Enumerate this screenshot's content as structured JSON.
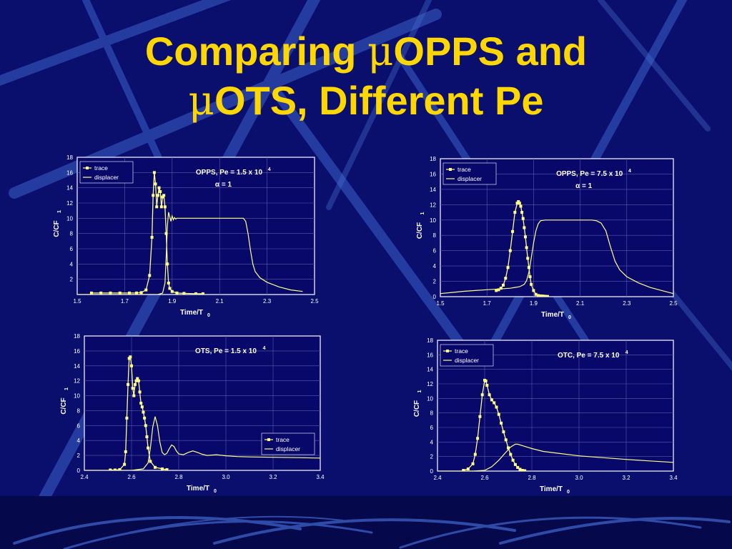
{
  "slide": {
    "title_line1_pre": "Comparing ",
    "title_line1_mu": "μ",
    "title_line1_post": "OPPS and",
    "title_line2_mu": "μ",
    "title_line2_post": "OTS, Different Pe",
    "colors": {
      "background": "#0a0f6e",
      "accent": "#ffd700",
      "plot": "#08086a",
      "line": "#ffff88"
    }
  },
  "chart_data": [
    {
      "type": "line",
      "title": "OPPS, Pe = 1.5 x 10",
      "title_sup": "4",
      "subtitle": "α  = 1",
      "xlabel": "Time/T",
      "xlabel_sub": "0",
      "ylabel": "C/CF",
      "ylabel_sub": "1",
      "xlim": [
        1.5,
        2.5
      ],
      "ylim": [
        0,
        18
      ],
      "xticks": [
        "1.5",
        "1.7",
        "1.9",
        "2.1",
        "2.3",
        "2.5"
      ],
      "yticks": [
        "2",
        "4",
        "6",
        "8",
        "10",
        "12",
        "14",
        "16",
        "18"
      ],
      "legend": "top-left",
      "series": [
        {
          "name": "trace",
          "marker": "square",
          "x": [
            1.56,
            1.6,
            1.64,
            1.68,
            1.72,
            1.75,
            1.77,
            1.79,
            1.805,
            1.815,
            1.82,
            1.825,
            1.83,
            1.835,
            1.84,
            1.845,
            1.85,
            1.855,
            1.86,
            1.865,
            1.87,
            1.875,
            1.88,
            1.885,
            1.89,
            1.9,
            1.92,
            1.95,
            2.0,
            2.03
          ],
          "y": [
            0.2,
            0.2,
            0.2,
            0.2,
            0.2,
            0.2,
            0.25,
            0.6,
            2.5,
            7.5,
            13,
            16,
            14.5,
            11.5,
            13,
            14,
            13.5,
            11.5,
            12.8,
            13,
            11.5,
            8,
            4,
            1.5,
            0.8,
            0.4,
            0.2,
            0.15,
            0.1,
            0.1
          ]
        },
        {
          "name": "displacer",
          "marker": "none",
          "x": [
            1.5,
            1.55,
            1.6,
            1.65,
            1.7,
            1.75,
            1.8,
            1.84,
            1.86,
            1.87,
            1.875,
            1.88,
            1.885,
            1.89,
            1.895,
            1.9,
            1.905,
            1.91,
            1.915,
            1.92,
            1.93,
            1.94,
            1.95,
            1.97,
            2.0,
            2.05,
            2.1,
            2.15,
            2.2,
            2.21,
            2.22,
            2.23,
            2.24,
            2.25,
            2.27,
            2.3,
            2.35,
            2.4,
            2.45
          ],
          "y": [
            0,
            0,
            0,
            0,
            0,
            0,
            0,
            0,
            0.2,
            1.5,
            5,
            9,
            10.8,
            10.2,
            9.6,
            10.3,
            9.8,
            10.1,
            9.9,
            10,
            10,
            10,
            10,
            10,
            10,
            10,
            10,
            10,
            10,
            9.6,
            8,
            5.8,
            4,
            3,
            2.2,
            1.6,
            1.0,
            0.6,
            0.4
          ]
        }
      ]
    },
    {
      "type": "line",
      "title": "OPPS, Pe = 7.5 x 10",
      "title_sup": "4",
      "subtitle": "α  = 1",
      "xlabel": "Time/T",
      "xlabel_sub": "0",
      "ylabel": "C/CF",
      "ylabel_sub": "1",
      "xlim": [
        1.5,
        2.5
      ],
      "ylim": [
        0,
        18
      ],
      "xticks": [
        "1.5",
        "1.7",
        "1.9",
        "2.1",
        "2.3",
        "2.5"
      ],
      "yticks": [
        "0",
        "2",
        "4",
        "6",
        "8",
        "10",
        "12",
        "14",
        "16",
        "18"
      ],
      "legend": "top-left",
      "series": [
        {
          "name": "trace",
          "marker": "square",
          "x": [
            1.74,
            1.75,
            1.76,
            1.77,
            1.78,
            1.79,
            1.8,
            1.81,
            1.82,
            1.83,
            1.835,
            1.84,
            1.845,
            1.85,
            1.855,
            1.86,
            1.865,
            1.87,
            1.875,
            1.88,
            1.885,
            1.89,
            1.9,
            1.91,
            1.92,
            1.93,
            1.94,
            1.95,
            1.96
          ],
          "y": [
            0.8,
            0.9,
            1.1,
            1.5,
            2.4,
            3.8,
            6,
            8.5,
            11,
            12.2,
            12.4,
            12.2,
            11.8,
            11,
            10.2,
            9,
            7.8,
            6.4,
            5,
            3.8,
            2.6,
            1.6,
            0.8,
            0.3,
            0.15,
            0.1,
            0.08,
            0.05,
            0.03
          ]
        },
        {
          "name": "displacer",
          "marker": "none",
          "x": [
            1.5,
            1.55,
            1.6,
            1.65,
            1.7,
            1.75,
            1.8,
            1.82,
            1.84,
            1.86,
            1.87,
            1.88,
            1.89,
            1.9,
            1.91,
            1.92,
            1.93,
            1.95,
            1.98,
            2.0,
            2.05,
            2.1,
            2.15,
            2.17,
            2.19,
            2.21,
            2.23,
            2.25,
            2.27,
            2.3,
            2.35,
            2.4,
            2.45,
            2.5
          ],
          "y": [
            0.4,
            0.55,
            0.7,
            0.8,
            0.9,
            1.0,
            1.1,
            1.2,
            1.3,
            1.6,
            2.1,
            3.2,
            5,
            7,
            8.6,
            9.5,
            9.9,
            10,
            10,
            10,
            10,
            10,
            10,
            9.9,
            9.6,
            8.6,
            6.5,
            4.6,
            3.5,
            2.6,
            1.8,
            1.2,
            0.8,
            0.4
          ]
        }
      ]
    },
    {
      "type": "line",
      "title": "OTS, Pe = 1.5 x 10",
      "title_sup": "4",
      "subtitle": "",
      "xlabel": "Time/T",
      "xlabel_sub": "0",
      "ylabel": "C/CF",
      "ylabel_sub": "1",
      "xlim": [
        2.4,
        3.4
      ],
      "ylim": [
        0,
        18
      ],
      "xticks": [
        "2.4",
        "2.6",
        "2.8",
        "3.0",
        "3.2",
        "3.4"
      ],
      "yticks": [
        "0",
        "2",
        "4",
        "6",
        "8",
        "10",
        "12",
        "14",
        "16",
        "18"
      ],
      "legend": "bottom-right",
      "series": [
        {
          "name": "trace",
          "marker": "square",
          "x": [
            2.51,
            2.53,
            2.55,
            2.57,
            2.575,
            2.58,
            2.585,
            2.59,
            2.595,
            2.6,
            2.605,
            2.61,
            2.615,
            2.62,
            2.625,
            2.63,
            2.635,
            2.64,
            2.645,
            2.65,
            2.655,
            2.66,
            2.665,
            2.67,
            2.68,
            2.7,
            2.73,
            2.75
          ],
          "y": [
            0.05,
            0.05,
            0.1,
            0.8,
            2.5,
            7,
            11.5,
            15,
            15.2,
            14,
            11,
            10,
            11.5,
            12,
            12.3,
            12,
            10.5,
            9,
            8.5,
            7.8,
            7,
            6,
            4.5,
            3,
            1.2,
            0.4,
            0.2,
            0.1
          ]
        },
        {
          "name": "displacer",
          "marker": "none",
          "x": [
            2.4,
            2.6,
            2.65,
            2.67,
            2.68,
            2.69,
            2.7,
            2.71,
            2.72,
            2.73,
            2.74,
            2.75,
            2.76,
            2.77,
            2.78,
            2.79,
            2.8,
            2.82,
            2.84,
            2.86,
            2.88,
            2.9,
            2.92,
            2.94,
            2.96,
            3.0,
            3.05,
            3.1,
            3.2,
            3.3,
            3.4
          ],
          "y": [
            0,
            0,
            0.2,
            1,
            3,
            5.8,
            7.2,
            6,
            3.8,
            2.4,
            2.1,
            2.3,
            2.9,
            3.4,
            3.2,
            2.6,
            2.2,
            2.1,
            2.4,
            2.6,
            2.4,
            2.15,
            2.0,
            2.05,
            2.1,
            1.95,
            1.85,
            1.8,
            1.75,
            1.7,
            1.65
          ]
        }
      ]
    },
    {
      "type": "line",
      "title": "OTC, Pe = 7.5 x 10",
      "title_sup": "4",
      "subtitle": "",
      "xlabel": "Time/T",
      "xlabel_sub": "0",
      "ylabel": "C/CF",
      "ylabel_sub": "1",
      "xlim": [
        2.4,
        3.4
      ],
      "ylim": [
        0,
        18
      ],
      "xticks": [
        "2.4",
        "2.6",
        "2.8",
        "3.0",
        "3.2",
        "3.4"
      ],
      "yticks": [
        "0",
        "2",
        "4",
        "6",
        "8",
        "10",
        "12",
        "14",
        "16",
        "18"
      ],
      "legend": "top-left",
      "series": [
        {
          "name": "trace",
          "marker": "square",
          "x": [
            2.51,
            2.53,
            2.55,
            2.56,
            2.57,
            2.58,
            2.59,
            2.6,
            2.605,
            2.61,
            2.62,
            2.63,
            2.64,
            2.65,
            2.66,
            2.67,
            2.68,
            2.69,
            2.7,
            2.71,
            2.72,
            2.73,
            2.74,
            2.75,
            2.76,
            2.77
          ],
          "y": [
            0.1,
            0.3,
            1,
            2.3,
            4.5,
            7.5,
            10.5,
            12.5,
            12.4,
            11.8,
            10.5,
            9.8,
            9.4,
            8.8,
            7.8,
            6.6,
            5.4,
            4.3,
            3.2,
            2.3,
            1.5,
            0.9,
            0.5,
            0.25,
            0.1,
            0.05
          ]
        },
        {
          "name": "displacer",
          "marker": "none",
          "x": [
            2.4,
            2.55,
            2.6,
            2.63,
            2.66,
            2.69,
            2.71,
            2.73,
            2.74,
            2.76,
            2.78,
            2.8,
            2.85,
            2.9,
            3.0,
            3.1,
            3.2,
            3.3,
            3.4
          ],
          "y": [
            0,
            0,
            0.1,
            0.6,
            1.5,
            2.6,
            3.3,
            3.7,
            3.7,
            3.5,
            3.3,
            3.1,
            2.7,
            2.5,
            2.1,
            1.85,
            1.6,
            1.4,
            1.2
          ]
        }
      ]
    }
  ]
}
